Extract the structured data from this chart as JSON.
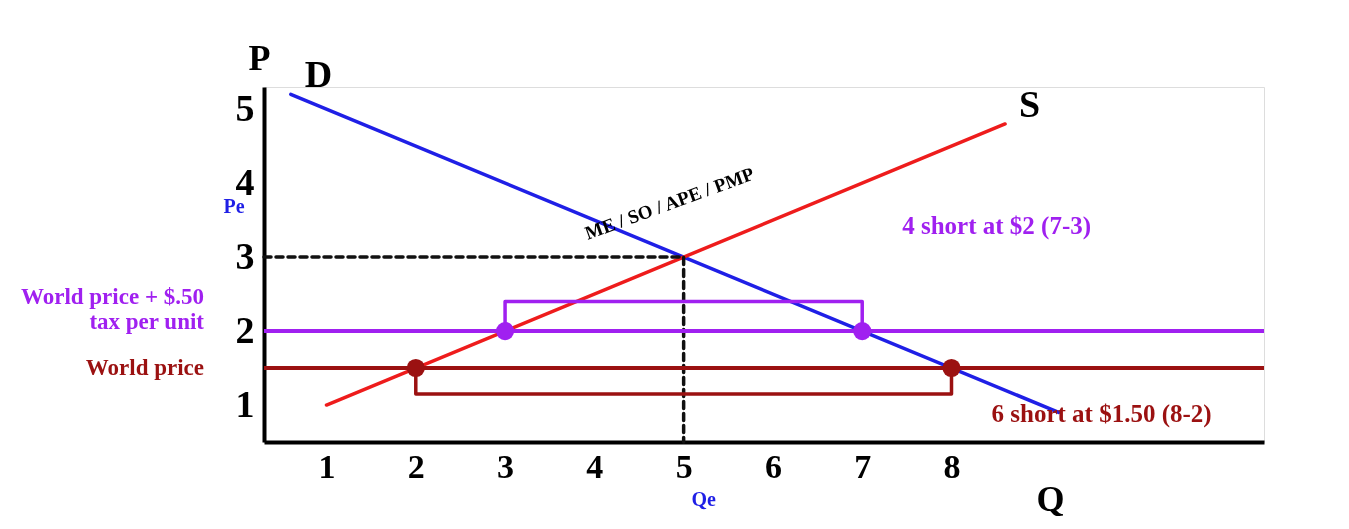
{
  "chart_data": {
    "type": "line",
    "xlabel": "Q",
    "ylabel": "P",
    "xlim": [
      0.3,
      11.5
    ],
    "ylim": [
      0.5,
      5.3
    ],
    "xticks": [
      1,
      2,
      3,
      4,
      5,
      6,
      7,
      8
    ],
    "yticks": [
      1,
      2,
      3,
      4,
      5
    ],
    "grid": false,
    "series": [
      {
        "name": "D",
        "color": "#1f1fe6",
        "x": [
          0.6,
          9.2
        ],
        "values": [
          5.2,
          0.9
        ]
      },
      {
        "name": "S",
        "color": "#ee1c1c",
        "x": [
          1,
          8.6
        ],
        "values": [
          1,
          4.8
        ]
      },
      {
        "color": "#111111",
        "line_style": "dashed",
        "x": [
          0.3,
          5,
          5
        ],
        "values": [
          3,
          3,
          0.5
        ]
      },
      {
        "color": "#a020f0",
        "x": [
          3,
          3,
          7,
          7
        ],
        "values": [
          2,
          2.4,
          2.4,
          2
        ]
      },
      {
        "color": "#9b1111",
        "x": [
          2,
          2,
          8,
          8
        ],
        "values": [
          1.5,
          1.15,
          1.15,
          1.5
        ]
      },
      {
        "color": "#a020f0",
        "type": "scatter",
        "marker": "circle",
        "x": [
          3,
          7
        ],
        "values": [
          2,
          2
        ]
      },
      {
        "color": "#9b1111",
        "type": "scatter",
        "marker": "circle",
        "x": [
          2,
          8
        ],
        "values": [
          1.5,
          1.5
        ]
      }
    ],
    "ref_lines": [
      {
        "axis": "y",
        "value": 2,
        "label": "World price + $.50\ntax per unit",
        "color": "#a020f0"
      },
      {
        "axis": "y",
        "value": 1.5,
        "label": "World price",
        "color": "#9b1111"
      }
    ],
    "annotations": [
      {
        "text": "ME / SO / APE / PMP",
        "x": 5,
        "y": 3
      },
      {
        "text": "4 short at $2 (7-3)",
        "x": 7,
        "y": 2.4
      },
      {
        "text": "6 short at $1.50 (8-2)",
        "x": 8,
        "y": 1.15
      },
      {
        "text": "Pe",
        "x": 0.3,
        "y": 3
      },
      {
        "text": "Qe",
        "x": 5,
        "y": 0.5
      }
    ]
  }
}
